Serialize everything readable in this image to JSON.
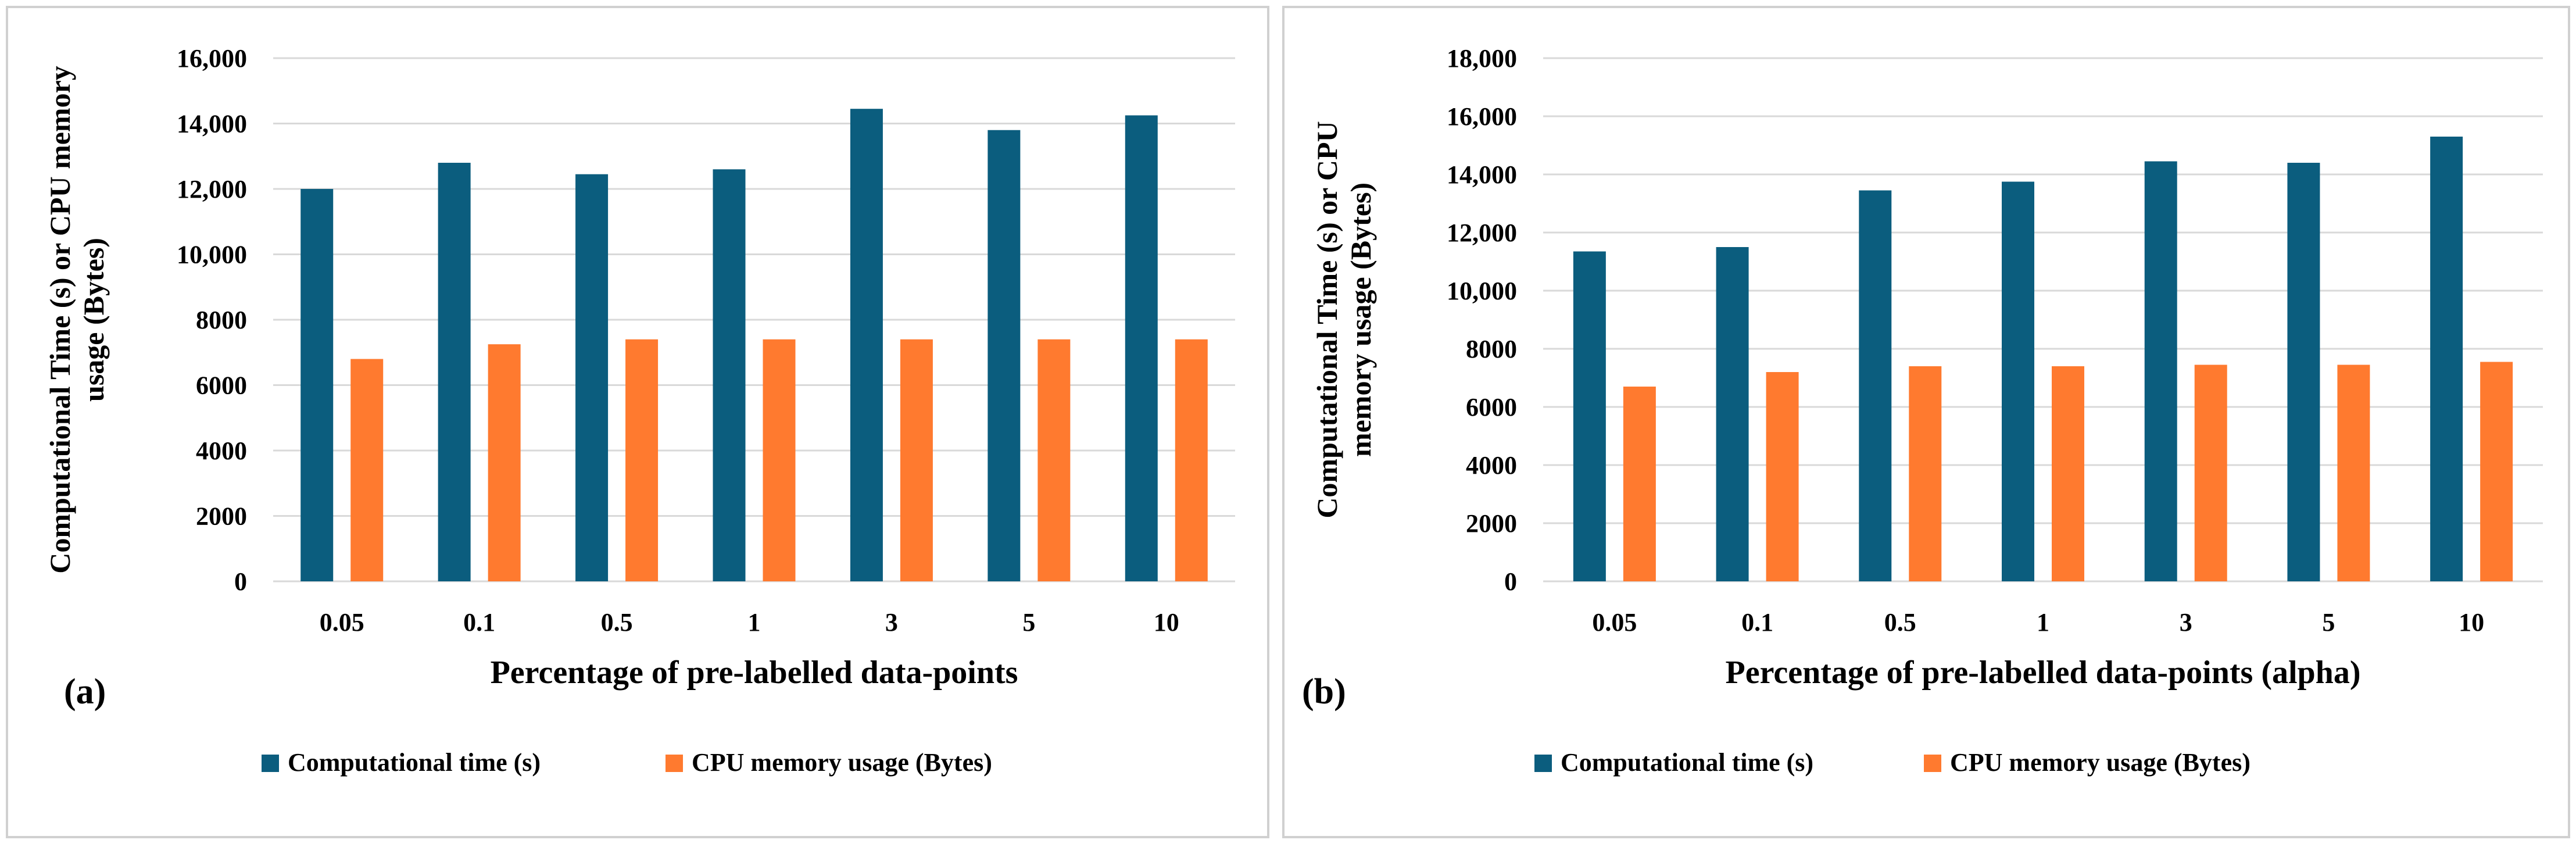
{
  "colors": {
    "computational_time": "#0B5D7E",
    "cpu_memory": "#FF7A2F",
    "grid": "#D9D9D9",
    "axis_text": "#000000",
    "panel_border": "#D0D0D0"
  },
  "chart_data": [
    {
      "id": "a",
      "type": "bar",
      "panel_label": "(a)",
      "title": "",
      "xlabel": "Percentage of pre-labelled data-points",
      "ylabel_lines": [
        "Computational Time (s) or CPU memory",
        "usage (Bytes)"
      ],
      "categories": [
        "0.05",
        "0.1",
        "0.5",
        "1",
        "3",
        "5",
        "10"
      ],
      "ylim": [
        0,
        16000
      ],
      "yticks": [
        0,
        2000,
        4000,
        6000,
        8000,
        10000,
        12000,
        14000,
        16000
      ],
      "ytick_labels": [
        "0",
        "2000",
        "4000",
        "6000",
        "8000",
        "10,000",
        "12,000",
        "14,000",
        "16,000"
      ],
      "grid": true,
      "legend_position": "bottom",
      "series": [
        {
          "name": "Computational time (s)",
          "color_key": "computational_time",
          "values": [
            12000,
            12800,
            12450,
            12600,
            14450,
            13800,
            14250
          ]
        },
        {
          "name": "CPU memory usage (Bytes)",
          "color_key": "cpu_memory",
          "values": [
            6800,
            7250,
            7400,
            7400,
            7400,
            7400,
            7400
          ]
        }
      ]
    },
    {
      "id": "b",
      "type": "bar",
      "panel_label": "(b)",
      "title": "",
      "xlabel": "Percentage of pre-labelled data-points (alpha)",
      "ylabel_lines": [
        "Computational Time (s) or CPU",
        "memory usage (Bytes)"
      ],
      "categories": [
        "0.05",
        "0.1",
        "0.5",
        "1",
        "3",
        "5",
        "10"
      ],
      "ylim": [
        0,
        18000
      ],
      "yticks": [
        0,
        2000,
        4000,
        6000,
        8000,
        10000,
        12000,
        14000,
        16000,
        18000
      ],
      "ytick_labels": [
        "0",
        "2000",
        "4000",
        "6000",
        "8000",
        "10,000",
        "12,000",
        "14,000",
        "16,000",
        "18,000"
      ],
      "grid": true,
      "legend_position": "bottom",
      "series": [
        {
          "name": "Computational time (s)",
          "color_key": "computational_time",
          "values": [
            11350,
            11500,
            13450,
            13750,
            14450,
            14400,
            15300
          ]
        },
        {
          "name": "CPU memory usage (Bytes)",
          "color_key": "cpu_memory",
          "values": [
            6700,
            7200,
            7400,
            7400,
            7450,
            7450,
            7550
          ]
        }
      ]
    }
  ]
}
